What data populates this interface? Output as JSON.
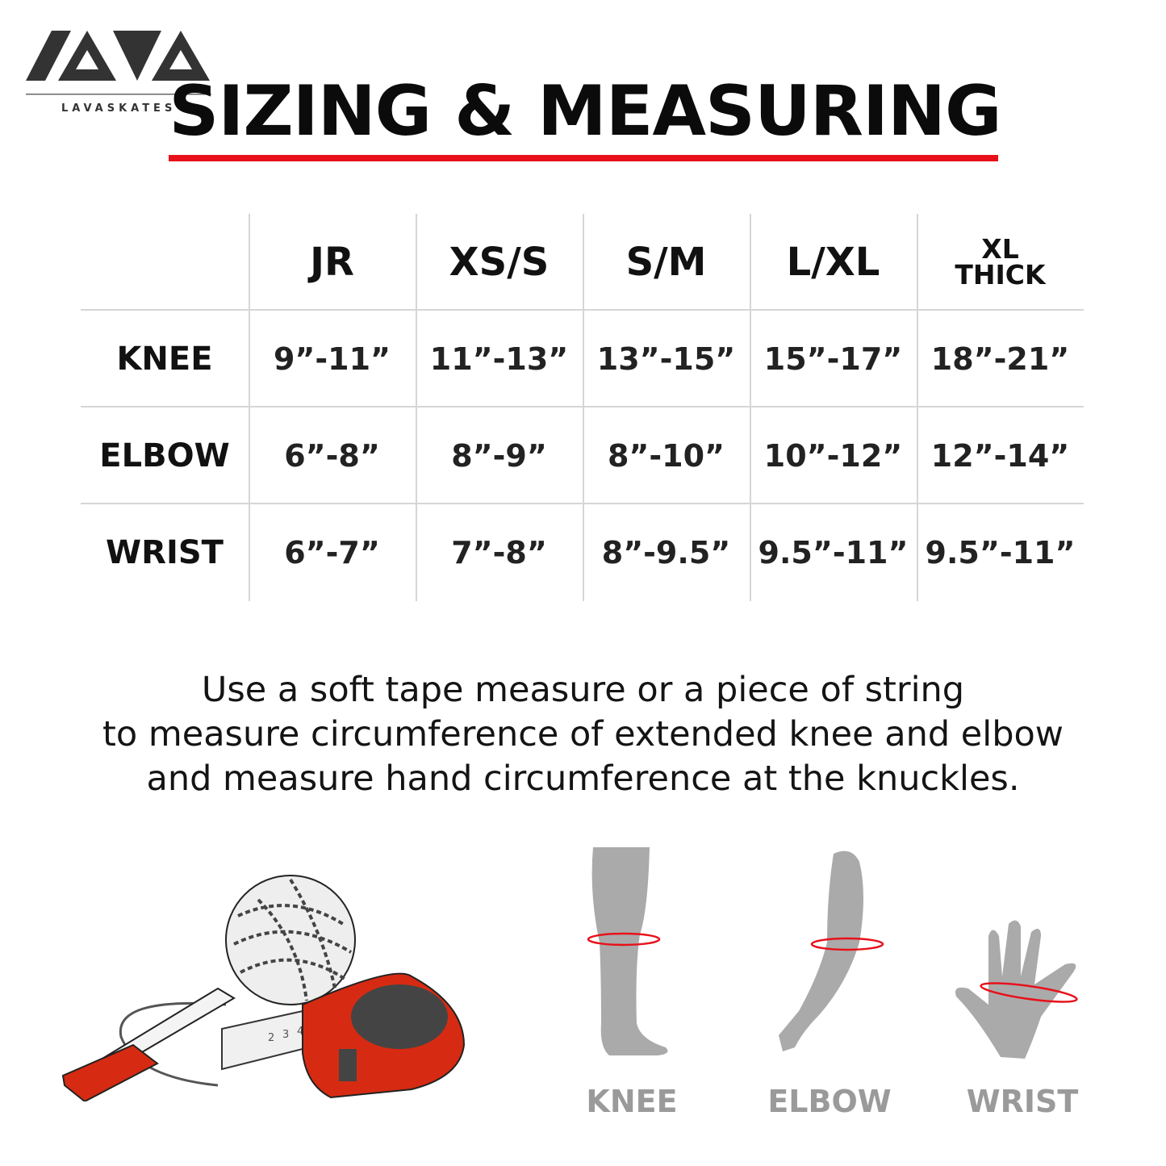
{
  "brand": {
    "logo_mark": "LAVA",
    "logo_text": "LAVASKATES"
  },
  "title": "SIZING & MEASURING",
  "colors": {
    "accent": "#e8111a",
    "text": "#111111",
    "muted": "#9a9a9a",
    "grid": "#d6d6d6"
  },
  "table": {
    "columns": [
      "JR",
      "XS/S",
      "S/M",
      "L/XL",
      {
        "line1": "XL",
        "line2": "THICK"
      }
    ],
    "rows": [
      {
        "label": "KNEE",
        "values": [
          "9”-11”",
          "11”-13”",
          "13”-15”",
          "15”-17”",
          "18”-21”"
        ]
      },
      {
        "label": "ELBOW",
        "values": [
          "6”-8”",
          "8”-9”",
          "8”-10”",
          "10”-12”",
          "12”-14”"
        ]
      },
      {
        "label": "WRIST",
        "values": [
          "6”-7”",
          "7”-8”",
          "8”-9.5”",
          "9.5”-11”",
          "9.5”-11”"
        ]
      }
    ]
  },
  "instructions": [
    "Use a soft tape measure or a piece of string",
    "to measure circumference of extended knee and elbow",
    "and measure hand circumference at the knuckles."
  ],
  "tape_numbers": [
    "2",
    "3",
    "4"
  ],
  "body_parts": [
    "KNEE",
    "ELBOW",
    "WRIST"
  ]
}
